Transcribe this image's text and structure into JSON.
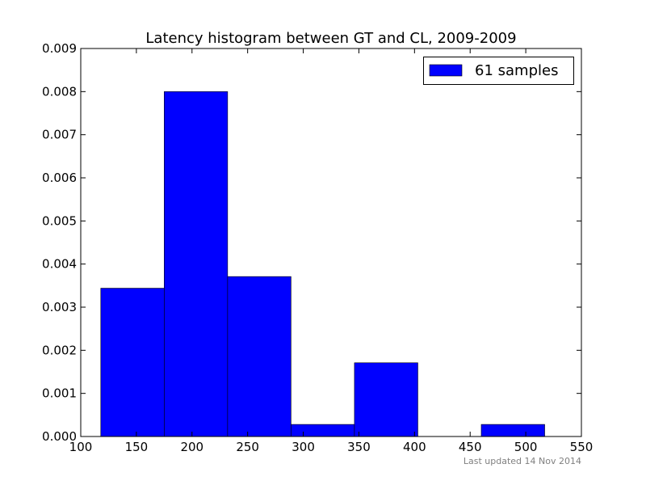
{
  "chart_data": {
    "type": "bar",
    "title": "Latency histogram between GT and CL, 2009-2009",
    "xlabel": "",
    "ylabel": "",
    "xlim": [
      100,
      550
    ],
    "ylim": [
      0,
      0.009
    ],
    "x_ticks": [
      "100",
      "150",
      "200",
      "250",
      "300",
      "350",
      "400",
      "450",
      "500",
      "550"
    ],
    "y_ticks": [
      "0.000",
      "0.001",
      "0.002",
      "0.003",
      "0.004",
      "0.005",
      "0.006",
      "0.007",
      "0.008",
      "0.009"
    ],
    "grid": false,
    "legend_position": "top-right",
    "bins": [
      {
        "x0": 118,
        "x1": 175,
        "value": 0.00344
      },
      {
        "x0": 175,
        "x1": 232,
        "value": 0.008
      },
      {
        "x0": 232,
        "x1": 289,
        "value": 0.00371
      },
      {
        "x0": 289,
        "x1": 346,
        "value": 0.00028
      },
      {
        "x0": 346,
        "x1": 403,
        "value": 0.00171
      },
      {
        "x0": 403,
        "x1": 460,
        "value": 0.0
      },
      {
        "x0": 460,
        "x1": 517,
        "value": 0.00028
      }
    ],
    "series": [
      {
        "name": "61 samples",
        "color": "#0000ff"
      }
    ],
    "footnote": "Last updated 14 Nov 2014"
  }
}
